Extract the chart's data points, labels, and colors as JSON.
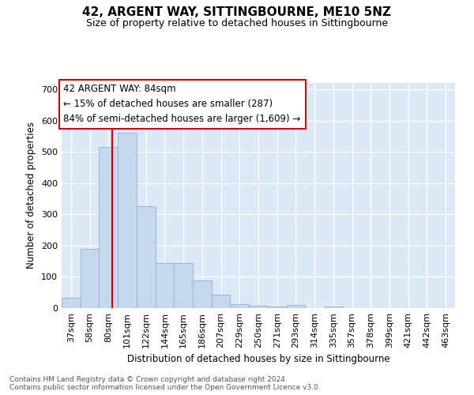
{
  "title": "42, ARGENT WAY, SITTINGBOURNE, ME10 5NZ",
  "subtitle": "Size of property relative to detached houses in Sittingbourne",
  "xlabel": "Distribution of detached houses by size in Sittingbourne",
  "ylabel": "Number of detached properties",
  "categories": [
    "37sqm",
    "58sqm",
    "80sqm",
    "101sqm",
    "122sqm",
    "144sqm",
    "165sqm",
    "186sqm",
    "207sqm",
    "229sqm",
    "250sqm",
    "271sqm",
    "293sqm",
    "314sqm",
    "335sqm",
    "357sqm",
    "378sqm",
    "399sqm",
    "421sqm",
    "442sqm",
    "463sqm"
  ],
  "values": [
    33,
    190,
    515,
    560,
    325,
    143,
    143,
    88,
    42,
    13,
    7,
    5,
    10,
    0,
    5,
    0,
    0,
    0,
    0,
    0,
    0
  ],
  "bar_color": "#c5d8ee",
  "bar_edge_color": "#9abcd8",
  "vline_color": "#cc0000",
  "vline_x": 2.18,
  "annotation_text": "42 ARGENT WAY: 84sqm\n← 15% of detached houses are smaller (287)\n84% of semi-detached houses are larger (1,609) →",
  "footnote_line1": "Contains HM Land Registry data © Crown copyright and database right 2024.",
  "footnote_line2": "Contains public sector information licensed under the Open Government Licence v3.0.",
  "ylim": [
    0,
    720
  ],
  "yticks": [
    0,
    100,
    200,
    300,
    400,
    500,
    600,
    700
  ],
  "fig_bg_color": "#ffffff",
  "plot_bg_color": "#dce8f5",
  "title_fontsize": 11,
  "subtitle_fontsize": 9,
  "xlabel_fontsize": 8.5,
  "ylabel_fontsize": 8.5,
  "tick_fontsize": 8,
  "annotation_fontsize": 8.5,
  "footnote_fontsize": 6.5
}
